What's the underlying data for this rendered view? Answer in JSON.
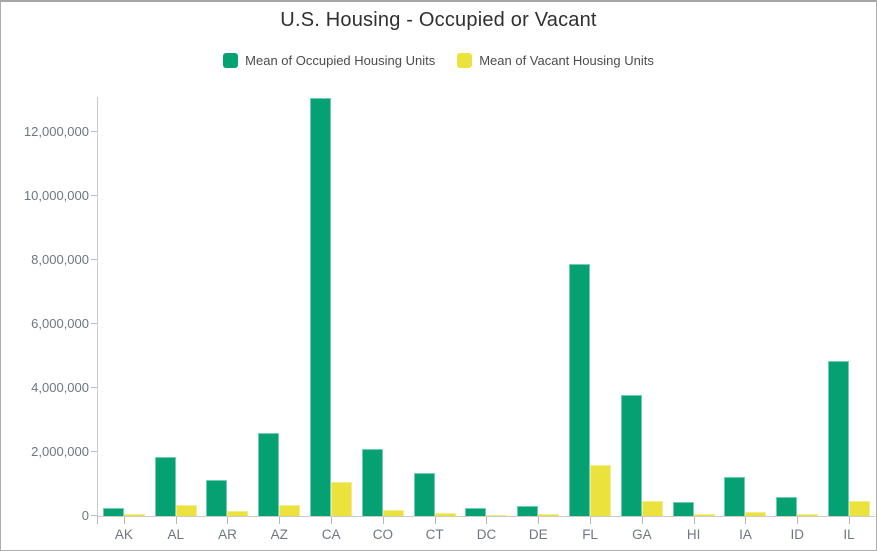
{
  "title": "U.S. Housing - Occupied or Vacant",
  "legend": {
    "occupied_label": "Mean of Occupied Housing Units",
    "vacant_label": "Mean of Vacant Housing Units"
  },
  "colors": {
    "occupied": "#05a173",
    "vacant": "#ece23e",
    "axis": "#cfccc8",
    "tick_label": "#6e7780"
  },
  "chart_data": {
    "type": "bar",
    "title": "U.S. Housing - Occupied or Vacant",
    "categories": [
      "AK",
      "AL",
      "AR",
      "AZ",
      "CA",
      "CO",
      "CT",
      "DC",
      "DE",
      "FL",
      "GA",
      "HI",
      "IA",
      "ID",
      "IL"
    ],
    "series": [
      {
        "name": "Mean of Occupied Housing Units",
        "color": "#05a173",
        "values": [
          240000,
          1860000,
          1120000,
          2580000,
          13060000,
          2080000,
          1345000,
          260000,
          320000,
          7880000,
          3780000,
          450000,
          1220000,
          600000,
          4840000
        ]
      },
      {
        "name": "Mean of Vacant Housing Units",
        "color": "#ece23e",
        "values": [
          55000,
          360000,
          165000,
          360000,
          1070000,
          200000,
          105000,
          30000,
          50000,
          1590000,
          460000,
          50000,
          115000,
          50000,
          460000
        ]
      }
    ],
    "xlabel": "",
    "ylabel": "",
    "ylim": [
      0,
      13100000
    ],
    "yticks": [
      0,
      2000000,
      4000000,
      6000000,
      8000000,
      10000000,
      12000000
    ],
    "grid": false,
    "legend_position": "top"
  }
}
